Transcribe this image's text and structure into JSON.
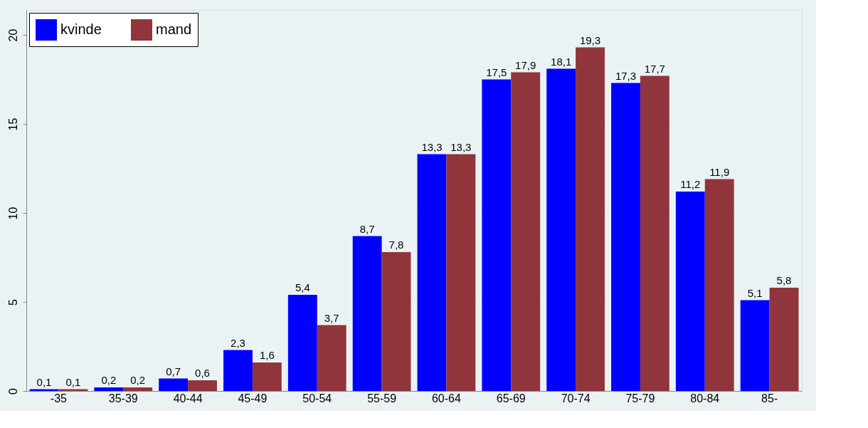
{
  "chart_data": {
    "type": "bar",
    "categories": [
      "-35",
      "35-39",
      "40-44",
      "45-49",
      "50-54",
      "55-59",
      "60-64",
      "65-69",
      "70-74",
      "75-79",
      "80-84",
      "85-"
    ],
    "series": [
      {
        "name": "kvinde",
        "color": "#0000ff",
        "values": [
          0.1,
          0.2,
          0.7,
          2.3,
          5.4,
          8.7,
          13.3,
          17.5,
          18.1,
          17.3,
          11.2,
          5.1
        ],
        "value_labels": [
          "0,1",
          "0,2",
          "0,7",
          "2,3",
          "5,4",
          "8,7",
          "13,3",
          "17,5",
          "18,1",
          "17,3",
          "11,2",
          "5,1"
        ]
      },
      {
        "name": "mand",
        "color": "#90353b",
        "values": [
          0.1,
          0.2,
          0.6,
          1.6,
          3.7,
          7.8,
          13.3,
          17.9,
          19.3,
          17.7,
          11.9,
          5.8
        ],
        "value_labels": [
          "0,1",
          "0,2",
          "0,6",
          "1,6",
          "3,7",
          "7,8",
          "13,3",
          "17,9",
          "19,3",
          "17,7",
          "11,9",
          "5,8"
        ]
      }
    ],
    "ylim": [
      0,
      21.4
    ],
    "yticks": [
      0,
      5,
      10,
      15,
      20
    ],
    "grid": "y",
    "legend": "top left"
  }
}
